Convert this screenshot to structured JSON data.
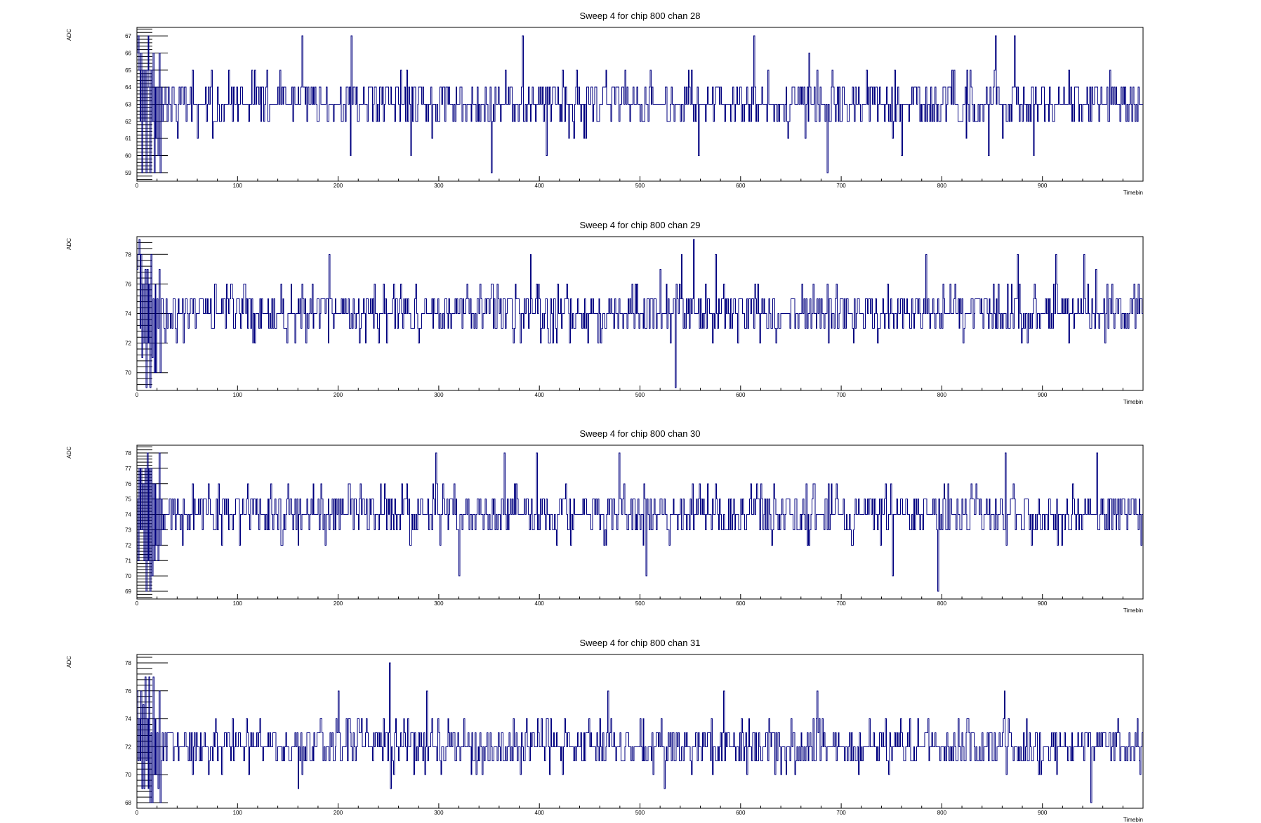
{
  "chart_data": [
    {
      "type": "line",
      "title": "Sweep 4 for chip 800 chan 28",
      "xlabel": "Timebin",
      "ylabel": "ADC",
      "xlim": [
        0,
        1000
      ],
      "ylim": [
        58.5,
        67.5
      ],
      "x_ticks": [
        0,
        100,
        200,
        300,
        400,
        500,
        600,
        700,
        800,
        900
      ],
      "y_ticks": [
        59,
        60,
        61,
        62,
        63,
        64,
        65,
        66,
        67
      ],
      "baseline": 63,
      "spread": 1.05,
      "min": 59,
      "max": 67,
      "seed": 28,
      "n_bins": 1000,
      "color": "#00007f",
      "spikes": [
        [
          11,
          67
        ],
        [
          164,
          67
        ],
        [
          213,
          67
        ],
        [
          383,
          67
        ],
        [
          613,
          67
        ],
        [
          853,
          67
        ],
        [
          872,
          67
        ],
        [
          1,
          67
        ],
        [
          352,
          59
        ],
        [
          686,
          59
        ],
        [
          212,
          60
        ],
        [
          272,
          60
        ],
        [
          407,
          60
        ],
        [
          558,
          60
        ],
        [
          760,
          60
        ],
        [
          846,
          60
        ],
        [
          891,
          60
        ]
      ]
    },
    {
      "type": "line",
      "title": "Sweep 4 for chip 800 chan 29",
      "xlabel": "Timebin",
      "ylabel": "ADC",
      "xlim": [
        0,
        1000
      ],
      "ylim": [
        68.8,
        79.2
      ],
      "x_ticks": [
        0,
        100,
        200,
        300,
        400,
        500,
        600,
        700,
        800,
        900
      ],
      "y_ticks": [
        70,
        72,
        74,
        76,
        78
      ],
      "baseline": 74,
      "spread": 1.25,
      "min": 69,
      "max": 79,
      "seed": 29,
      "n_bins": 1000,
      "color": "#00007f",
      "spikes": [
        [
          535,
          69
        ],
        [
          553,
          79
        ],
        [
          191,
          78
        ],
        [
          391,
          78
        ],
        [
          541,
          78
        ],
        [
          575,
          78
        ],
        [
          784,
          78
        ],
        [
          875,
          78
        ],
        [
          913,
          78
        ],
        [
          941,
          78
        ],
        [
          1,
          78
        ]
      ]
    },
    {
      "type": "line",
      "title": "Sweep 4 for chip 800 chan 30",
      "xlabel": "Timebin",
      "ylabel": "ADC",
      "xlim": [
        0,
        1000
      ],
      "ylim": [
        68.5,
        78.5
      ],
      "x_ticks": [
        0,
        100,
        200,
        300,
        400,
        500,
        600,
        700,
        800,
        900
      ],
      "y_ticks": [
        69,
        70,
        71,
        72,
        73,
        74,
        75,
        76,
        77,
        78
      ],
      "baseline": 74,
      "spread": 1.15,
      "min": 69,
      "max": 78,
      "seed": 30,
      "n_bins": 1000,
      "color": "#00007f",
      "spikes": [
        [
          297,
          78
        ],
        [
          365,
          78
        ],
        [
          397,
          78
        ],
        [
          479,
          78
        ],
        [
          863,
          78
        ],
        [
          954,
          78
        ],
        [
          796,
          69
        ],
        [
          320,
          70
        ],
        [
          506,
          70
        ],
        [
          751,
          70
        ],
        [
          1,
          71
        ]
      ]
    },
    {
      "type": "line",
      "title": "Sweep 4 for chip 800 chan 31",
      "xlabel": "Timebin",
      "ylabel": "ADC",
      "xlim": [
        0,
        1000
      ],
      "ylim": [
        67.6,
        78.6
      ],
      "x_ticks": [
        0,
        100,
        200,
        300,
        400,
        500,
        600,
        700,
        800,
        900
      ],
      "y_ticks": [
        68,
        70,
        72,
        74,
        76,
        78
      ],
      "baseline": 72,
      "spread": 1.25,
      "min": 68,
      "max": 78,
      "seed": 31,
      "n_bins": 1000,
      "color": "#00007f",
      "spikes": [
        [
          251,
          78
        ],
        [
          200,
          76
        ],
        [
          288,
          76
        ],
        [
          468,
          76
        ],
        [
          583,
          76
        ],
        [
          676,
          76
        ],
        [
          862,
          76
        ],
        [
          948,
          68
        ],
        [
          252,
          69
        ],
        [
          160,
          69
        ],
        [
          1,
          71
        ]
      ]
    }
  ]
}
